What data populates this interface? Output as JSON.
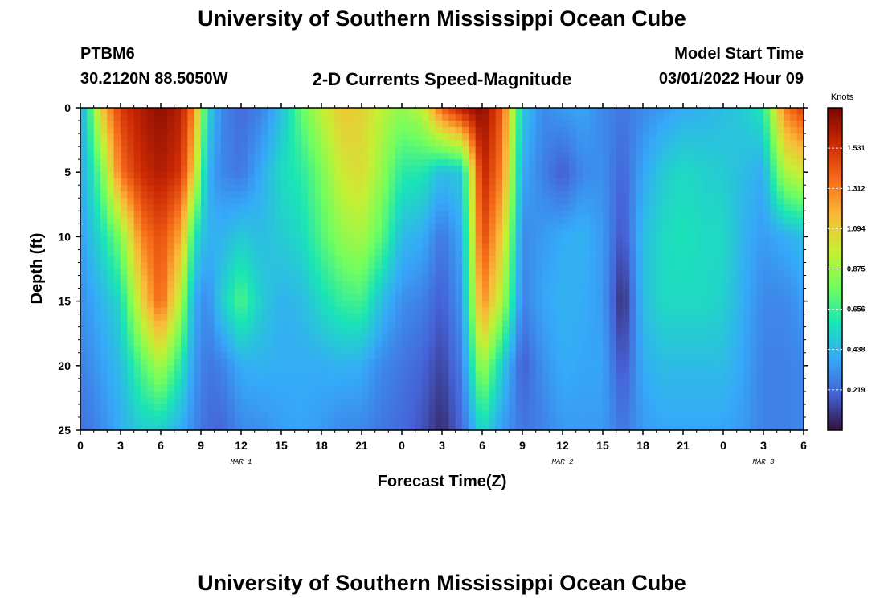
{
  "titles": {
    "top": "University of Southern Mississippi Ocean Cube",
    "bottom": "University of Southern Mississippi Ocean Cube"
  },
  "header": {
    "station": "PTBM6",
    "coords": "30.2120N  88.5050W",
    "model_start_label": "Model Start Time",
    "model_start_value": "03/01/2022 Hour 09"
  },
  "chart_data": {
    "type": "heatmap",
    "title": "2-D Currents Speed-Magnitude",
    "xlabel": "Forecast Time(Z)",
    "ylabel": "Depth (ft)",
    "x_tick_labels": [
      "0",
      "3",
      "6",
      "9",
      "12",
      "15",
      "18",
      "21",
      "0",
      "3",
      "6",
      "9",
      "12",
      "15",
      "18",
      "21",
      "0",
      "3",
      "6"
    ],
    "x_range_hours_from_mar1_00z": [
      0,
      54
    ],
    "day_labels": [
      {
        "label": "MAR 1",
        "at_hour": 12
      },
      {
        "label": "MAR 2",
        "at_hour": 36
      },
      {
        "label": "MAR 3",
        "at_hour": 51
      }
    ],
    "y_ticks": [
      0,
      5,
      10,
      15,
      20,
      25
    ],
    "ylim": [
      0,
      25
    ],
    "y_inverted": true,
    "colorbar": {
      "unit": "Knots",
      "ticks": [
        0.219,
        0.438,
        0.656,
        0.875,
        1.094,
        1.312,
        1.531
      ],
      "range": [
        0,
        1.75
      ],
      "colormap": [
        "#30123b",
        "#4662d7",
        "#36a9f9",
        "#1ae4b6",
        "#72fe5e",
        "#c7ef34",
        "#faba39",
        "#f66b19",
        "#cb2a04",
        "#7a0403"
      ]
    },
    "profiles": {
      "depths_ft": [
        0,
        5,
        10,
        15,
        20,
        25
      ],
      "hours": [
        0,
        0.5,
        1.5,
        3,
        4.5,
        6,
        7.5,
        8.5,
        9.5,
        10.5,
        12,
        13.5,
        15,
        16.5,
        18,
        19.5,
        21,
        22.5,
        24,
        25.5,
        27,
        28.5,
        30,
        31.5,
        33,
        34.5,
        36,
        37.5,
        39,
        40.5,
        42,
        43.5,
        45,
        46.5,
        48,
        49.5,
        51,
        52.5,
        54
      ],
      "speeds": [
        [
          0.4,
          0.4,
          0.35,
          0.32,
          0.28,
          0.24
        ],
        [
          0.55,
          0.48,
          0.42,
          0.35,
          0.3,
          0.25
        ],
        [
          1.1,
          0.75,
          0.55,
          0.42,
          0.36,
          0.3
        ],
        [
          1.5,
          1.35,
          0.8,
          0.55,
          0.45,
          0.4
        ],
        [
          1.62,
          1.55,
          1.3,
          1.05,
          0.7,
          0.5
        ],
        [
          1.7,
          1.62,
          1.45,
          1.4,
          0.9,
          0.5
        ],
        [
          1.6,
          1.52,
          1.2,
          0.9,
          0.6,
          0.4
        ],
        [
          1.3,
          1.1,
          0.6,
          0.4,
          0.35,
          0.3
        ],
        [
          0.55,
          0.42,
          0.42,
          0.3,
          0.25,
          0.22
        ],
        [
          0.3,
          0.3,
          0.42,
          0.5,
          0.28,
          0.2
        ],
        [
          0.22,
          0.25,
          0.5,
          0.7,
          0.4,
          0.3
        ],
        [
          0.28,
          0.4,
          0.45,
          0.5,
          0.42,
          0.32
        ],
        [
          0.45,
          0.55,
          0.5,
          0.42,
          0.4,
          0.36
        ],
        [
          0.75,
          0.62,
          0.55,
          0.45,
          0.4,
          0.38
        ],
        [
          0.95,
          0.78,
          0.7,
          0.55,
          0.4,
          0.35
        ],
        [
          1.12,
          1.0,
          0.85,
          0.65,
          0.42,
          0.3
        ],
        [
          1.08,
          1.05,
          0.9,
          0.68,
          0.4,
          0.3
        ],
        [
          0.95,
          0.85,
          0.72,
          0.45,
          0.3,
          0.25
        ],
        [
          0.85,
          0.62,
          0.45,
          0.32,
          0.25,
          0.22
        ],
        [
          0.95,
          0.6,
          0.4,
          0.28,
          0.2,
          0.16
        ],
        [
          1.4,
          0.45,
          0.25,
          0.18,
          0.12,
          0.06
        ],
        [
          1.62,
          0.5,
          0.4,
          0.35,
          0.28,
          0.22
        ],
        [
          1.72,
          1.6,
          1.48,
          1.3,
          0.9,
          0.55
        ],
        [
          1.4,
          1.3,
          1.1,
          0.9,
          0.5,
          0.35
        ],
        [
          0.5,
          0.4,
          0.3,
          0.28,
          0.18,
          0.25
        ],
        [
          0.3,
          0.28,
          0.35,
          0.38,
          0.32,
          0.28
        ],
        [
          0.35,
          0.18,
          0.4,
          0.42,
          0.4,
          0.35
        ],
        [
          0.38,
          0.3,
          0.42,
          0.4,
          0.38,
          0.35
        ],
        [
          0.3,
          0.32,
          0.35,
          0.35,
          0.38,
          0.35
        ],
        [
          0.25,
          0.2,
          0.15,
          0.05,
          0.15,
          0.25
        ],
        [
          0.3,
          0.38,
          0.45,
          0.45,
          0.4,
          0.35
        ],
        [
          0.35,
          0.5,
          0.55,
          0.55,
          0.45,
          0.38
        ],
        [
          0.4,
          0.55,
          0.58,
          0.55,
          0.45,
          0.38
        ],
        [
          0.42,
          0.52,
          0.55,
          0.55,
          0.45,
          0.38
        ],
        [
          0.45,
          0.5,
          0.55,
          0.52,
          0.45,
          0.38
        ],
        [
          0.5,
          0.45,
          0.42,
          0.4,
          0.38,
          0.35
        ],
        [
          0.6,
          0.4,
          0.35,
          0.3,
          0.28,
          0.28
        ],
        [
          1.3,
          0.9,
          0.4,
          0.3,
          0.28,
          0.28
        ],
        [
          1.5,
          1.0,
          0.45,
          0.35,
          0.3,
          0.3
        ]
      ]
    }
  }
}
